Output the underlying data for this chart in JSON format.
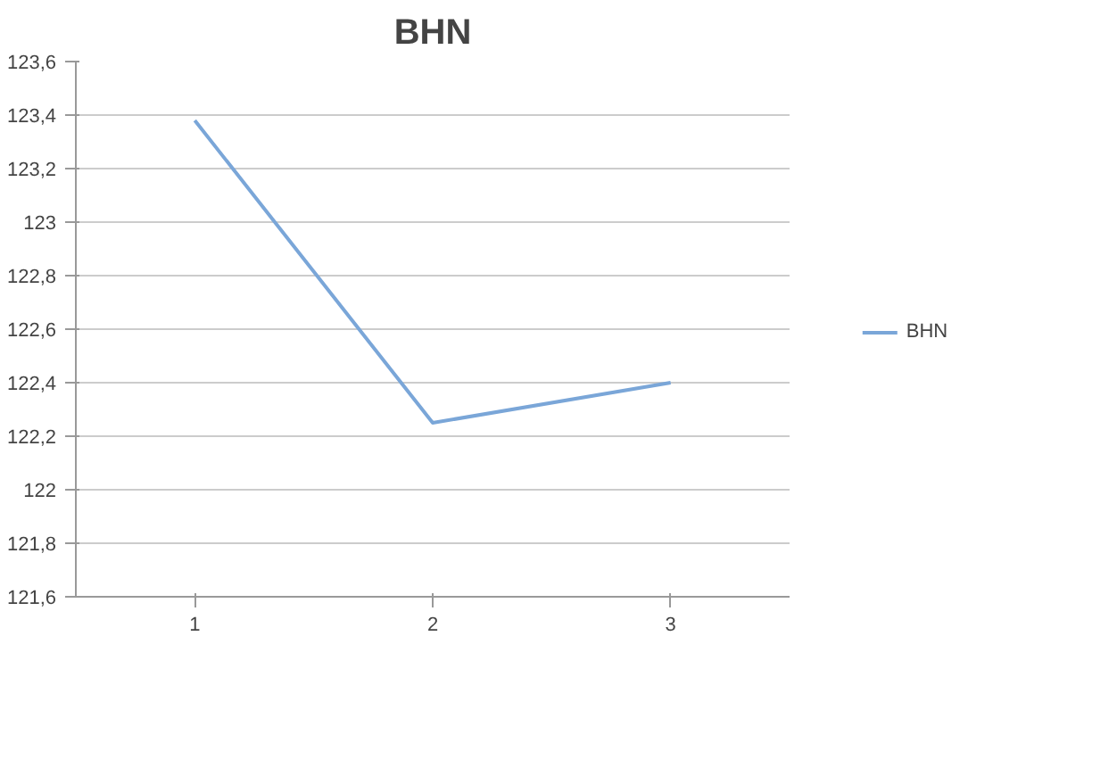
{
  "chart_data": {
    "type": "line",
    "title": "BHN",
    "categories": [
      "1",
      "2",
      "3"
    ],
    "series": [
      {
        "name": "BHN",
        "color": "#7aa6d8",
        "values": [
          123.38,
          122.25,
          122.4
        ]
      }
    ],
    "ylim": [
      121.6,
      123.6
    ],
    "yticks": [
      {
        "value": 121.6,
        "label": "121,6"
      },
      {
        "value": 121.8,
        "label": "121,8"
      },
      122,
      {
        "value": 122.2,
        "label": "122,2"
      },
      {
        "value": 122.4,
        "label": "122,4"
      },
      {
        "value": 122.6,
        "label": "122,6"
      },
      {
        "value": 122.8,
        "label": "122,8"
      },
      123,
      {
        "value": 123.2,
        "label": "123,2"
      },
      {
        "value": 123.4,
        "label": "123,4"
      },
      {
        "value": 123.6,
        "label": "123,6"
      }
    ],
    "grid": "y",
    "legend": "right",
    "marker": "none",
    "line_style": "solid"
  }
}
